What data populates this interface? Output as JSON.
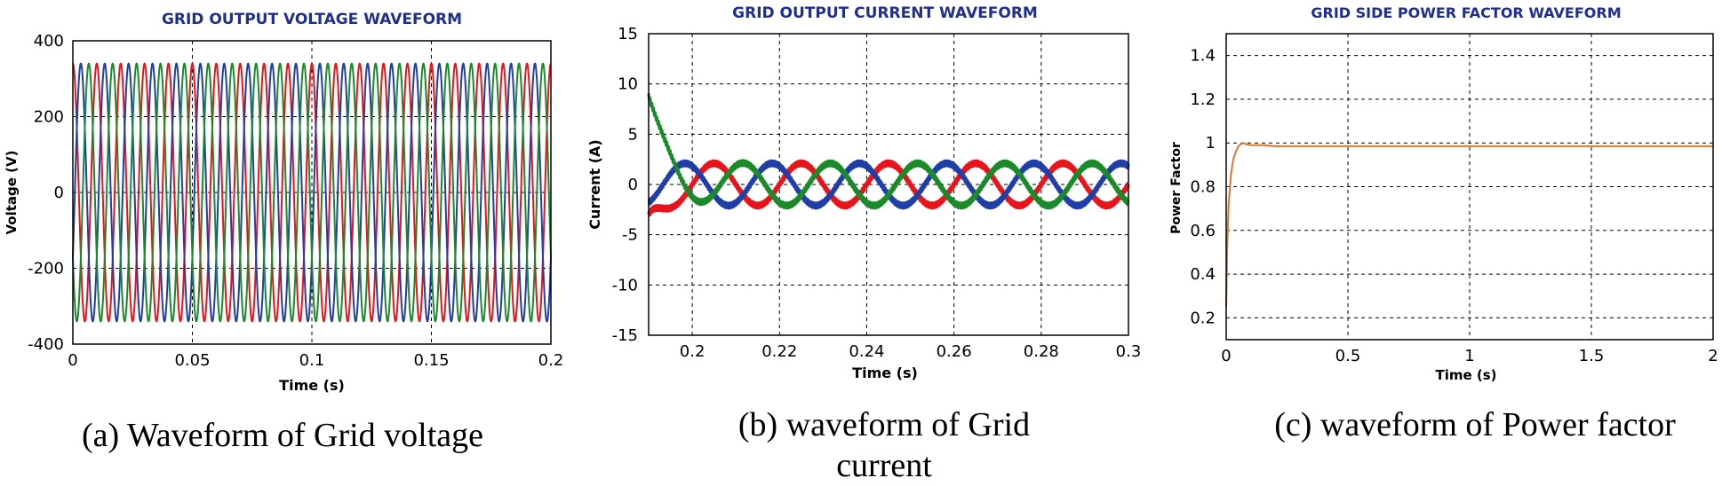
{
  "chart_data": [
    {
      "type": "line",
      "title": "GRID OUTPUT VOLTAGE WAVEFORM",
      "xlabel": "Time (s)",
      "ylabel": "Voltage (V)",
      "xlim": [
        0,
        0.2
      ],
      "ylim": [
        -400,
        400
      ],
      "xticks": [
        "0",
        "0.05",
        "0.1",
        "0.15",
        "0.2"
      ],
      "yticks": [
        "400",
        "200",
        "0",
        "-200",
        "-400"
      ],
      "grid": true,
      "series": [
        {
          "name": "phase-a",
          "color": "#e8141c",
          "amplitude": 340,
          "frequency_hz": 100,
          "phase_deg": 90
        },
        {
          "name": "phase-b",
          "color": "#1f3ea8",
          "amplitude": 340,
          "frequency_hz": 100,
          "phase_deg": -30
        },
        {
          "name": "phase-c",
          "color": "#1a8a2a",
          "amplitude": 340,
          "frequency_hz": 100,
          "phase_deg": 210
        }
      ],
      "caption": "(a) Waveform of Grid voltage"
    },
    {
      "type": "line",
      "title": "GRID OUTPUT CURRENT WAVEFORM",
      "xlabel": "Time (s)",
      "ylabel": "Current (A)",
      "xlim": [
        0.19,
        0.3
      ],
      "ylim": [
        -15,
        15
      ],
      "xticks": [
        "0.2",
        "0.22",
        "0.24",
        "0.26",
        "0.28",
        "0.3"
      ],
      "yticks": [
        "15",
        "10",
        "5",
        "0",
        "-5",
        "-10",
        "-15"
      ],
      "grid": true,
      "series": [
        {
          "name": "phase-a",
          "color": "#e8141c",
          "amplitude": 2.1,
          "frequency_hz": 50,
          "phase_deg": 0
        },
        {
          "name": "phase-b",
          "color": "#1f3ea8",
          "amplitude": 2.1,
          "frequency_hz": 50,
          "phase_deg": 120
        },
        {
          "name": "phase-c",
          "color": "#1a8a2a",
          "amplitude": 2.1,
          "frequency_hz": 50,
          "phase_deg": -120
        }
      ],
      "caption_lines": [
        "(b) waveform of Grid",
        "current"
      ]
    },
    {
      "type": "line",
      "title": "GRID SIDE POWER FACTOR WAVEFORM",
      "xlabel": "Time (s)",
      "ylabel": "Power Factor",
      "xlim": [
        0,
        2
      ],
      "ylim": [
        0.1,
        1.5
      ],
      "xticks": [
        "0",
        "0.5",
        "1",
        "1.5",
        "2"
      ],
      "yticks": [
        "1.4",
        "1.2",
        "1",
        "0.8",
        "0.6",
        "0.4",
        "0.2"
      ],
      "grid": true,
      "series": [
        {
          "name": "power-factor",
          "color": "#d9772a",
          "x": [
            0,
            0.005,
            0.01,
            0.02,
            0.03,
            0.04,
            0.05,
            0.06,
            0.07,
            0.08,
            0.1,
            0.15,
            0.2,
            2
          ],
          "y": [
            0.25,
            0.55,
            0.72,
            0.86,
            0.93,
            0.96,
            0.985,
            0.995,
            1.0,
            0.995,
            0.99,
            0.99,
            0.985,
            0.985
          ]
        }
      ],
      "caption": "(c) waveform of Power factor"
    }
  ]
}
